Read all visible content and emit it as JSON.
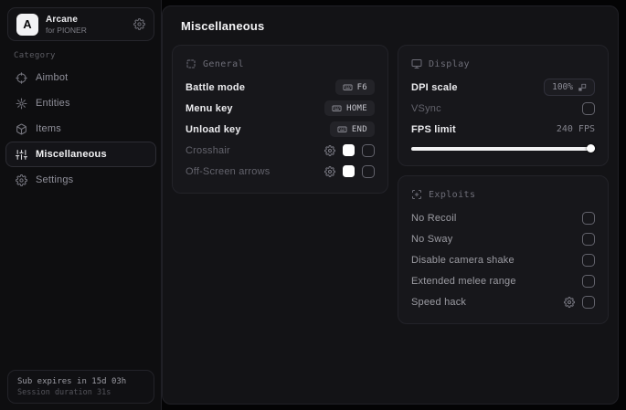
{
  "app": {
    "name": "Arcane",
    "subtitle": "for PIONER",
    "logo_letter": "A"
  },
  "sidebar": {
    "category_label": "Category",
    "items": [
      {
        "label": "Aimbot",
        "icon": "crosshair-icon",
        "selected": false
      },
      {
        "label": "Entities",
        "icon": "entities-icon",
        "selected": false
      },
      {
        "label": "Items",
        "icon": "box-icon",
        "selected": false
      },
      {
        "label": "Miscellaneous",
        "icon": "sliders-icon",
        "selected": true
      },
      {
        "label": "Settings",
        "icon": "gear-icon",
        "selected": false
      }
    ],
    "footer": {
      "line1": "Sub expires in 15d 03h",
      "line2": "Session duration 31s"
    }
  },
  "main": {
    "title": "Miscellaneous",
    "panels": [
      {
        "id": "general",
        "column": "left",
        "title": "General",
        "icon": "grid-icon",
        "rows": [
          {
            "type": "keybind",
            "label": "Battle mode",
            "key": "F6",
            "emphasis": "bright"
          },
          {
            "type": "keybind",
            "label": "Menu key",
            "key": "HOME",
            "emphasis": "bright"
          },
          {
            "type": "keybind",
            "label": "Unload key",
            "key": "END",
            "emphasis": "bright"
          },
          {
            "type": "toggle",
            "label": "Crosshair",
            "gear": true,
            "swatch": "#ffffff",
            "checked": false,
            "emphasis": "dim"
          },
          {
            "type": "toggle",
            "label": "Off-Screen arrows",
            "gear": true,
            "swatch": "#ffffff",
            "checked": false,
            "emphasis": "dim"
          }
        ]
      },
      {
        "id": "display",
        "column": "right",
        "title": "Display",
        "icon": "monitor-icon",
        "rows": [
          {
            "type": "select",
            "label": "DPI scale",
            "value": "100%",
            "emphasis": "bright"
          },
          {
            "type": "check",
            "label": "VSync",
            "checked": false,
            "emphasis": "dim"
          },
          {
            "type": "slider",
            "label": "FPS limit",
            "value": "240 FPS",
            "percent": 100,
            "emphasis": "bright"
          }
        ]
      },
      {
        "id": "exploits",
        "column": "right",
        "title": "Exploits",
        "icon": "scan-icon",
        "rows": [
          {
            "type": "check",
            "label": "No Recoil",
            "checked": false,
            "emphasis": "normal"
          },
          {
            "type": "check",
            "label": "No Sway",
            "checked": false,
            "emphasis": "normal"
          },
          {
            "type": "check",
            "label": "Disable camera shake",
            "checked": false,
            "emphasis": "normal"
          },
          {
            "type": "check",
            "label": "Extended melee range",
            "checked": false,
            "emphasis": "normal"
          },
          {
            "type": "check",
            "label": "Speed hack",
            "gear": true,
            "checked": false,
            "emphasis": "normal"
          }
        ]
      }
    ]
  },
  "colors": {
    "swatch_white": "#ffffff",
    "slider_fill": "#f2f2f3",
    "window_bg": "#040405",
    "panel_bg": "#17171b"
  }
}
